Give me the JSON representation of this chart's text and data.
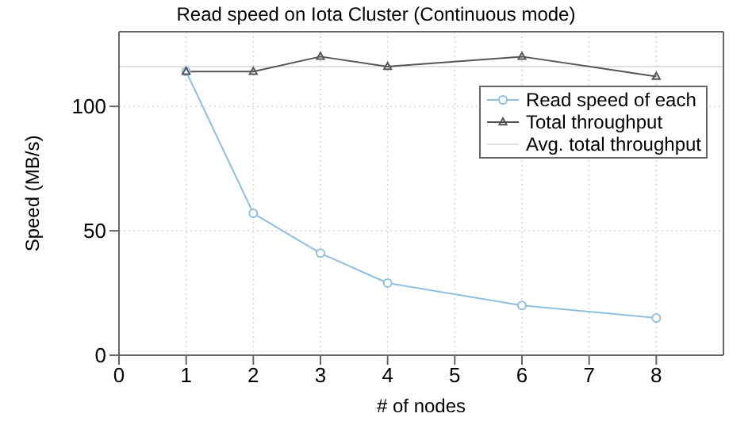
{
  "chart_data": {
    "type": "line",
    "title": "Read speed on Iota Cluster (Continuous mode)",
    "xlabel": "# of nodes",
    "ylabel": "Speed (MB/s)",
    "x": [
      1,
      2,
      3,
      4,
      6,
      8
    ],
    "series": [
      {
        "name": "Read speed of each",
        "color": "#8fbfe0",
        "marker": "circle",
        "values": [
          114,
          57,
          41,
          29,
          20,
          15
        ]
      },
      {
        "name": "Total throughput",
        "color": "#555555",
        "marker": "triangle",
        "values": [
          114,
          114,
          120,
          116,
          120,
          112
        ]
      }
    ],
    "ref_lines": [
      {
        "axis": "y",
        "value": 116,
        "label": "Avg. total throughput",
        "color": "#e0e0e0"
      }
    ],
    "xlim": [
      0,
      9
    ],
    "xticks": [
      0,
      1,
      2,
      3,
      4,
      5,
      6,
      7,
      8
    ],
    "ylim": [
      0,
      130
    ],
    "yticks": [
      0,
      50,
      100
    ],
    "grid": true,
    "legend": "top right",
    "line_style": "solid"
  }
}
